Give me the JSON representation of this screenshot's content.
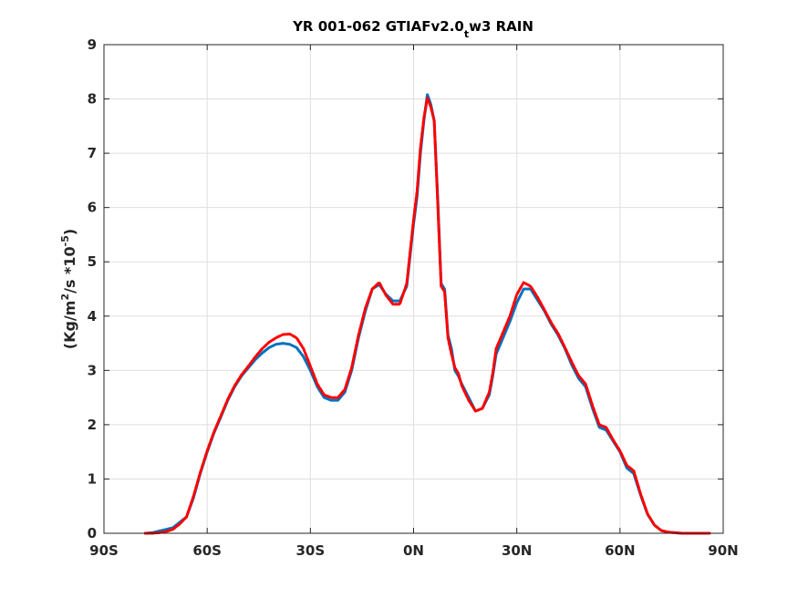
{
  "chart_data": {
    "type": "line",
    "title": {
      "pre": "YR 001-062 GTIAFv2.0",
      "sub": "t",
      "post": "w3 RAIN"
    },
    "ylabel": {
      "pre": "(Kg/m",
      "sup1": "2",
      "mid": "/s   *10",
      "sup2": "-5",
      "post": ")"
    },
    "xlabel": "",
    "xlim": [
      -90,
      90
    ],
    "ylim": [
      0,
      9
    ],
    "grid": true,
    "xticks": [
      {
        "value": -90,
        "label": "90S"
      },
      {
        "value": -60,
        "label": "60S"
      },
      {
        "value": -30,
        "label": "30S"
      },
      {
        "value": 0,
        "label": "0N"
      },
      {
        "value": 30,
        "label": "30N"
      },
      {
        "value": 60,
        "label": "60N"
      },
      {
        "value": 90,
        "label": "90N"
      }
    ],
    "yticks": [
      {
        "value": 0,
        "label": "0"
      },
      {
        "value": 1,
        "label": "1"
      },
      {
        "value": 2,
        "label": "2"
      },
      {
        "value": 3,
        "label": "3"
      },
      {
        "value": 4,
        "label": "4"
      },
      {
        "value": 5,
        "label": "5"
      },
      {
        "value": 6,
        "label": "6"
      },
      {
        "value": 7,
        "label": "7"
      },
      {
        "value": 8,
        "label": "8"
      },
      {
        "value": 9,
        "label": "9"
      }
    ],
    "series": [
      {
        "color": "#0072bd",
        "style": "solid",
        "x": [
          -78,
          -76,
          -74,
          -72,
          -70,
          -68,
          -66,
          -64,
          -62,
          -60,
          -58,
          -56,
          -54,
          -52,
          -50,
          -48,
          -46,
          -44,
          -42,
          -40,
          -38,
          -36,
          -34,
          -32,
          -30,
          -28,
          -26,
          -24,
          -22,
          -20,
          -18,
          -16,
          -14,
          -12,
          -10,
          -8,
          -6,
          -4,
          -2,
          0,
          1,
          2,
          3,
          4,
          5,
          6,
          7,
          8,
          9,
          10,
          11,
          12,
          13,
          14,
          16,
          18,
          20,
          22,
          23,
          24,
          26,
          28,
          30,
          32,
          34,
          36,
          38,
          40,
          42,
          44,
          46,
          48,
          50,
          52,
          54,
          56,
          58,
          60,
          62,
          64,
          66,
          68,
          70,
          72,
          74,
          76,
          78,
          80,
          82,
          84,
          86
        ],
        "y": [
          0.0,
          0.01,
          0.04,
          0.07,
          0.1,
          0.2,
          0.3,
          0.65,
          1.1,
          1.5,
          1.85,
          2.15,
          2.45,
          2.7,
          2.9,
          3.05,
          3.2,
          3.32,
          3.42,
          3.48,
          3.5,
          3.48,
          3.42,
          3.25,
          3.0,
          2.7,
          2.5,
          2.45,
          2.45,
          2.6,
          3.0,
          3.6,
          4.1,
          4.5,
          4.58,
          4.4,
          4.28,
          4.28,
          4.55,
          5.7,
          6.2,
          7.0,
          7.6,
          8.08,
          7.9,
          7.6,
          6.2,
          4.6,
          4.5,
          3.65,
          3.4,
          3.0,
          2.9,
          2.75,
          2.5,
          2.25,
          2.3,
          2.55,
          2.9,
          3.3,
          3.6,
          3.9,
          4.25,
          4.5,
          4.5,
          4.3,
          4.1,
          3.85,
          3.65,
          3.4,
          3.1,
          2.85,
          2.7,
          2.3,
          1.95,
          1.9,
          1.7,
          1.5,
          1.2,
          1.1,
          0.7,
          0.35,
          0.15,
          0.05,
          0.02,
          0.01,
          0.0,
          0.0,
          0.0,
          0.0,
          0.0
        ]
      },
      {
        "color": "#ff0000",
        "style": "dashed",
        "x": [
          -78,
          -76,
          -74,
          -72,
          -70,
          -68,
          -66,
          -64,
          -62,
          -60,
          -58,
          -56,
          -54,
          -52,
          -50,
          -48,
          -46,
          -44,
          -42,
          -40,
          -38,
          -36,
          -34,
          -32,
          -30,
          -28,
          -26,
          -24,
          -22,
          -20,
          -18,
          -16,
          -14,
          -12,
          -10,
          -8,
          -6,
          -4,
          -2,
          0,
          1,
          2,
          3,
          4,
          5,
          6,
          7,
          8,
          9,
          10,
          11,
          12,
          13,
          14,
          16,
          18,
          20,
          22,
          23,
          24,
          26,
          28,
          30,
          32,
          34,
          36,
          38,
          40,
          42,
          44,
          46,
          48,
          50,
          52,
          54,
          56,
          58,
          60,
          62,
          64,
          66,
          68,
          70,
          72,
          74,
          76,
          78,
          80,
          82,
          84,
          86
        ],
        "y": [
          0.0,
          0.0,
          0.01,
          0.03,
          0.07,
          0.17,
          0.3,
          0.68,
          1.12,
          1.52,
          1.87,
          2.17,
          2.47,
          2.72,
          2.92,
          3.08,
          3.25,
          3.4,
          3.52,
          3.6,
          3.66,
          3.67,
          3.6,
          3.4,
          3.08,
          2.75,
          2.55,
          2.5,
          2.5,
          2.65,
          3.05,
          3.65,
          4.15,
          4.5,
          4.62,
          4.38,
          4.22,
          4.22,
          4.6,
          5.78,
          6.3,
          7.1,
          7.65,
          8.02,
          7.85,
          7.6,
          6.1,
          4.55,
          4.45,
          3.6,
          3.3,
          3.05,
          2.95,
          2.72,
          2.45,
          2.25,
          2.3,
          2.6,
          2.95,
          3.4,
          3.7,
          4.0,
          4.4,
          4.62,
          4.55,
          4.35,
          4.12,
          3.88,
          3.68,
          3.42,
          3.15,
          2.9,
          2.75,
          2.35,
          2.0,
          1.95,
          1.72,
          1.52,
          1.25,
          1.15,
          0.72,
          0.36,
          0.15,
          0.05,
          0.02,
          0.01,
          0.0,
          0.0,
          0.0,
          0.0,
          0.0
        ]
      }
    ]
  }
}
